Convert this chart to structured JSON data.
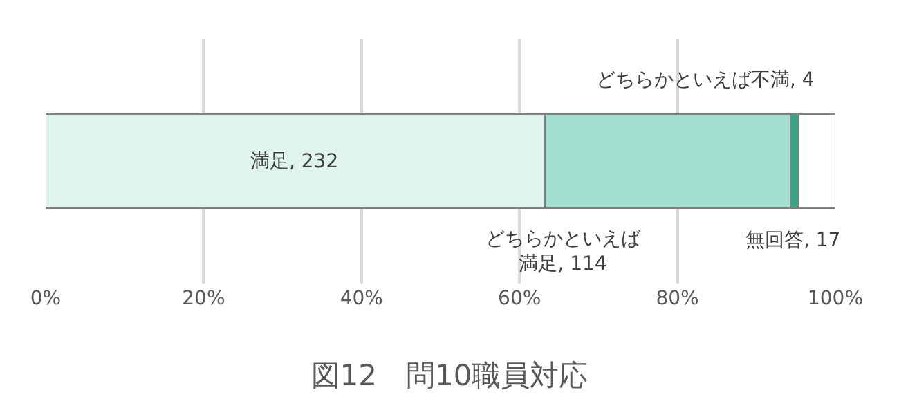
{
  "chart_data": {
    "type": "bar",
    "orientation": "horizontal",
    "stacked": true,
    "title": "図12　問10職員対応",
    "categories": [
      null
    ],
    "series": [
      {
        "name": "満足",
        "color": "#dff4ee",
        "values": [
          63.2
        ]
      },
      {
        "name": "どちらかといえば満足",
        "color": "#a3e0d0",
        "values": [
          31.1
        ]
      },
      {
        "name": "どちらかといえば不満",
        "color": "#3aa584",
        "values": [
          1.1
        ]
      },
      {
        "name": "無回答",
        "color": "#ffffff",
        "values": [
          4.6
        ]
      }
    ],
    "annotations": [
      ", 232",
      ", 114",
      ", 4",
      ", 17"
    ],
    "xlim": [
      0,
      100
    ],
    "xticks": [
      {
        "value": 0,
        "label": "0%"
      },
      {
        "value": 20,
        "label": "20%"
      },
      {
        "value": 40,
        "label": "40%"
      },
      {
        "value": 60,
        "label": "60%"
      },
      {
        "value": 80,
        "label": "80%"
      },
      {
        "value": 100,
        "label": "100%"
      }
    ],
    "grid": "x",
    "legend": false,
    "tick_labels": "x"
  }
}
